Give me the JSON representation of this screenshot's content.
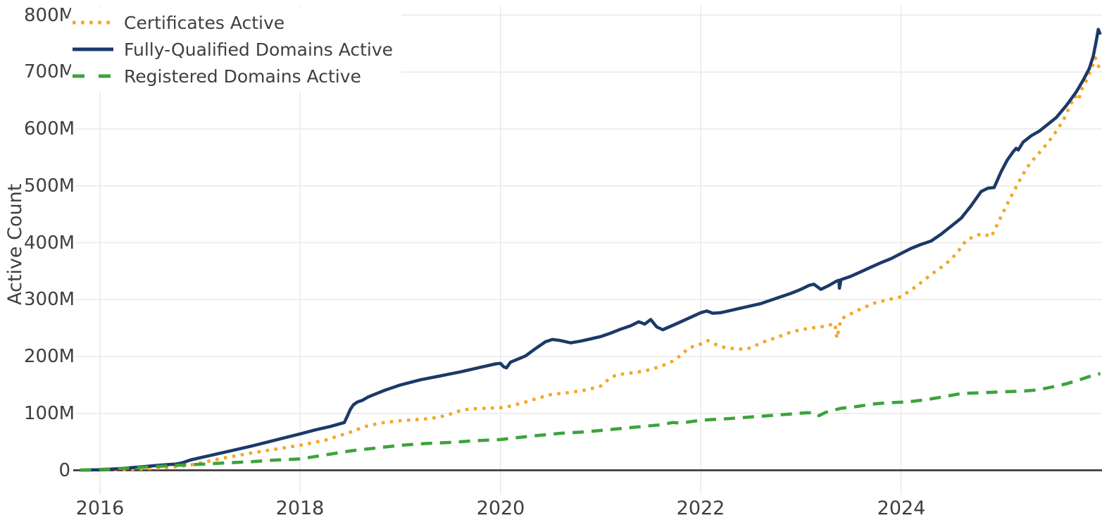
{
  "chart_data": {
    "type": "line",
    "title": "",
    "xlabel": "",
    "ylabel": "Active Count",
    "unit": "millions",
    "grid": true,
    "legend_position": "top-left-inside",
    "xlim": [
      2015.75,
      2026.0
    ],
    "ylim": [
      0,
      800
    ],
    "colors": {
      "certificates": "#F5A623",
      "fqdn": "#1B3A68",
      "registered": "#3CA33C",
      "tick_text": "#3f3f3f",
      "gridline": "#e9e9e9",
      "zero_axis": "#3b3b3b",
      "background": "#ffffff"
    },
    "x_ticks": [
      {
        "label": "2016",
        "value": 2016
      },
      {
        "label": "2018",
        "value": 2018
      },
      {
        "label": "2020",
        "value": 2020
      },
      {
        "label": "2022",
        "value": 2022
      },
      {
        "label": "2024",
        "value": 2024
      }
    ],
    "y_ticks": [
      {
        "label": "0",
        "value": 0
      },
      {
        "label": "100M",
        "value": 100
      },
      {
        "label": "200M",
        "value": 200
      },
      {
        "label": "300M",
        "value": 300
      },
      {
        "label": "400M",
        "value": 400
      },
      {
        "label": "500M",
        "value": 500
      },
      {
        "label": "600M",
        "value": 600
      },
      {
        "label": "700M",
        "value": 700
      },
      {
        "label": "800M",
        "value": 800
      }
    ],
    "series": [
      {
        "name": "Certificates Active",
        "color": "#F5A623",
        "style": "dotted",
        "dash": "4.5 7.6",
        "points": [
          [
            2015.8,
            0.2
          ],
          [
            2016.0,
            0.5
          ],
          [
            2016.3,
            1.5
          ],
          [
            2016.5,
            3
          ],
          [
            2016.7,
            5
          ],
          [
            2016.9,
            9
          ],
          [
            2017.0,
            13
          ],
          [
            2017.25,
            22
          ],
          [
            2017.5,
            30
          ],
          [
            2017.75,
            37
          ],
          [
            2018.0,
            44
          ],
          [
            2018.25,
            53
          ],
          [
            2018.5,
            67
          ],
          [
            2018.65,
            77
          ],
          [
            2018.8,
            83
          ],
          [
            2019.0,
            87
          ],
          [
            2019.15,
            89
          ],
          [
            2019.3,
            91
          ],
          [
            2019.4,
            94
          ],
          [
            2019.5,
            99
          ],
          [
            2019.6,
            105
          ],
          [
            2019.7,
            108
          ],
          [
            2019.85,
            109
          ],
          [
            2020.0,
            110
          ],
          [
            2020.1,
            113
          ],
          [
            2020.25,
            120
          ],
          [
            2020.4,
            128
          ],
          [
            2020.5,
            133
          ],
          [
            2020.6,
            135
          ],
          [
            2020.7,
            137
          ],
          [
            2020.85,
            141
          ],
          [
            2021.0,
            148
          ],
          [
            2021.08,
            160
          ],
          [
            2021.15,
            167
          ],
          [
            2021.25,
            170
          ],
          [
            2021.35,
            172
          ],
          [
            2021.45,
            175
          ],
          [
            2021.55,
            180
          ],
          [
            2021.65,
            186
          ],
          [
            2021.72,
            192
          ],
          [
            2021.8,
            202
          ],
          [
            2021.88,
            215
          ],
          [
            2022.0,
            222
          ],
          [
            2022.07,
            228
          ],
          [
            2022.15,
            221
          ],
          [
            2022.25,
            215
          ],
          [
            2022.4,
            213
          ],
          [
            2022.5,
            215
          ],
          [
            2022.6,
            224
          ],
          [
            2022.75,
            233
          ],
          [
            2022.9,
            243
          ],
          [
            2023.0,
            247
          ],
          [
            2023.1,
            250
          ],
          [
            2023.2,
            252
          ],
          [
            2023.3,
            256
          ],
          [
            2023.34,
            258
          ],
          [
            2023.36,
            232
          ],
          [
            2023.4,
            266
          ],
          [
            2023.5,
            275
          ],
          [
            2023.6,
            284
          ],
          [
            2023.75,
            295
          ],
          [
            2023.9,
            301
          ],
          [
            2024.0,
            305
          ],
          [
            2024.15,
            323
          ],
          [
            2024.3,
            344
          ],
          [
            2024.45,
            363
          ],
          [
            2024.55,
            380
          ],
          [
            2024.65,
            404
          ],
          [
            2024.75,
            413
          ],
          [
            2024.82,
            416
          ],
          [
            2024.9,
            410
          ],
          [
            2025.0,
            446
          ],
          [
            2025.08,
            475
          ],
          [
            2025.17,
            505
          ],
          [
            2025.25,
            530
          ],
          [
            2025.32,
            546
          ],
          [
            2025.42,
            566
          ],
          [
            2025.52,
            588
          ],
          [
            2025.62,
            615
          ],
          [
            2025.7,
            645
          ],
          [
            2025.74,
            658
          ],
          [
            2025.77,
            650
          ],
          [
            2025.8,
            668
          ],
          [
            2025.86,
            688
          ],
          [
            2025.91,
            710
          ],
          [
            2025.94,
            725
          ],
          [
            2025.97,
            712
          ],
          [
            2025.99,
            700
          ]
        ]
      },
      {
        "name": "Fully-Qualified Domains Active",
        "color": "#1B3A68",
        "style": "solid",
        "dash": "",
        "points": [
          [
            2015.8,
            0.3
          ],
          [
            2016.0,
            1
          ],
          [
            2016.2,
            3
          ],
          [
            2016.4,
            6
          ],
          [
            2016.6,
            9
          ],
          [
            2016.76,
            11
          ],
          [
            2016.82,
            13
          ],
          [
            2016.9,
            18
          ],
          [
            2017.0,
            22
          ],
          [
            2017.25,
            32
          ],
          [
            2017.5,
            42
          ],
          [
            2017.75,
            53
          ],
          [
            2018.0,
            64
          ],
          [
            2018.15,
            71
          ],
          [
            2018.3,
            77
          ],
          [
            2018.44,
            84
          ],
          [
            2018.47,
            95
          ],
          [
            2018.5,
            107
          ],
          [
            2018.53,
            115
          ],
          [
            2018.57,
            120
          ],
          [
            2018.62,
            123
          ],
          [
            2018.68,
            129
          ],
          [
            2018.75,
            134
          ],
          [
            2018.85,
            141
          ],
          [
            2019.0,
            150
          ],
          [
            2019.2,
            159
          ],
          [
            2019.4,
            166
          ],
          [
            2019.6,
            173
          ],
          [
            2019.8,
            181
          ],
          [
            2019.95,
            187
          ],
          [
            2020.0,
            188
          ],
          [
            2020.03,
            182
          ],
          [
            2020.06,
            180
          ],
          [
            2020.1,
            190
          ],
          [
            2020.25,
            201
          ],
          [
            2020.35,
            214
          ],
          [
            2020.45,
            226
          ],
          [
            2020.52,
            230
          ],
          [
            2020.6,
            228
          ],
          [
            2020.7,
            224
          ],
          [
            2020.8,
            227
          ],
          [
            2020.9,
            231
          ],
          [
            2021.0,
            235
          ],
          [
            2021.1,
            241
          ],
          [
            2021.2,
            248
          ],
          [
            2021.3,
            254
          ],
          [
            2021.38,
            261
          ],
          [
            2021.44,
            257
          ],
          [
            2021.5,
            265
          ],
          [
            2021.56,
            252
          ],
          [
            2021.62,
            247
          ],
          [
            2021.75,
            257
          ],
          [
            2021.9,
            269
          ],
          [
            2022.0,
            277
          ],
          [
            2022.06,
            280
          ],
          [
            2022.12,
            276
          ],
          [
            2022.2,
            277
          ],
          [
            2022.3,
            281
          ],
          [
            2022.45,
            287
          ],
          [
            2022.6,
            293
          ],
          [
            2022.75,
            302
          ],
          [
            2022.9,
            311
          ],
          [
            2023.0,
            318
          ],
          [
            2023.08,
            325
          ],
          [
            2023.13,
            327
          ],
          [
            2023.2,
            318
          ],
          [
            2023.27,
            324
          ],
          [
            2023.35,
            332
          ],
          [
            2023.38,
            334
          ],
          [
            2023.385,
            320
          ],
          [
            2023.4,
            335
          ],
          [
            2023.5,
            341
          ],
          [
            2023.6,
            349
          ],
          [
            2023.7,
            357
          ],
          [
            2023.8,
            365
          ],
          [
            2023.9,
            372
          ],
          [
            2024.0,
            381
          ],
          [
            2024.1,
            390
          ],
          [
            2024.2,
            397
          ],
          [
            2024.3,
            403
          ],
          [
            2024.4,
            415
          ],
          [
            2024.5,
            429
          ],
          [
            2024.6,
            443
          ],
          [
            2024.7,
            465
          ],
          [
            2024.8,
            490
          ],
          [
            2024.87,
            496
          ],
          [
            2024.93,
            497
          ],
          [
            2025.0,
            525
          ],
          [
            2025.06,
            545
          ],
          [
            2025.12,
            560
          ],
          [
            2025.15,
            566
          ],
          [
            2025.17,
            563
          ],
          [
            2025.22,
            577
          ],
          [
            2025.3,
            588
          ],
          [
            2025.38,
            596
          ],
          [
            2025.45,
            606
          ],
          [
            2025.55,
            620
          ],
          [
            2025.65,
            641
          ],
          [
            2025.75,
            665
          ],
          [
            2025.82,
            686
          ],
          [
            2025.88,
            706
          ],
          [
            2025.92,
            728
          ],
          [
            2025.95,
            755
          ],
          [
            2025.97,
            775
          ],
          [
            2025.99,
            766
          ]
        ]
      },
      {
        "name": "Registered Domains Active",
        "color": "#3CA33C",
        "style": "dashed",
        "dash": "16 11",
        "points": [
          [
            2015.8,
            0.3
          ],
          [
            2016.0,
            1.5
          ],
          [
            2016.3,
            4
          ],
          [
            2016.6,
            7
          ],
          [
            2016.8,
            9
          ],
          [
            2017.0,
            10.5
          ],
          [
            2017.25,
            13
          ],
          [
            2017.5,
            15
          ],
          [
            2017.75,
            18
          ],
          [
            2018.0,
            20
          ],
          [
            2018.25,
            27
          ],
          [
            2018.5,
            34
          ],
          [
            2018.75,
            39
          ],
          [
            2019.0,
            44
          ],
          [
            2019.25,
            47
          ],
          [
            2019.5,
            49
          ],
          [
            2019.75,
            52
          ],
          [
            2020.0,
            54
          ],
          [
            2020.3,
            60
          ],
          [
            2020.6,
            65
          ],
          [
            2020.8,
            67
          ],
          [
            2021.0,
            70
          ],
          [
            2021.3,
            75
          ],
          [
            2021.6,
            80
          ],
          [
            2021.72,
            84
          ],
          [
            2021.8,
            83
          ],
          [
            2022.0,
            88
          ],
          [
            2022.3,
            91
          ],
          [
            2022.6,
            95
          ],
          [
            2022.9,
            99
          ],
          [
            2023.05,
            101
          ],
          [
            2023.15,
            101
          ],
          [
            2023.18,
            96
          ],
          [
            2023.25,
            102
          ],
          [
            2023.4,
            109
          ],
          [
            2023.55,
            112
          ],
          [
            2023.75,
            117
          ],
          [
            2023.9,
            119
          ],
          [
            2024.05,
            120
          ],
          [
            2024.25,
            124
          ],
          [
            2024.45,
            130
          ],
          [
            2024.6,
            135
          ],
          [
            2024.75,
            136
          ],
          [
            2024.9,
            137
          ],
          [
            2025.0,
            138
          ],
          [
            2025.2,
            139
          ],
          [
            2025.35,
            141
          ],
          [
            2025.5,
            146
          ],
          [
            2025.65,
            152
          ],
          [
            2025.8,
            160
          ],
          [
            2025.9,
            166
          ],
          [
            2025.99,
            170
          ]
        ]
      }
    ]
  },
  "legend": {
    "items": [
      {
        "label": "Certificates Active"
      },
      {
        "label": "Fully-Qualified Domains Active"
      },
      {
        "label": "Registered Domains Active"
      }
    ]
  }
}
